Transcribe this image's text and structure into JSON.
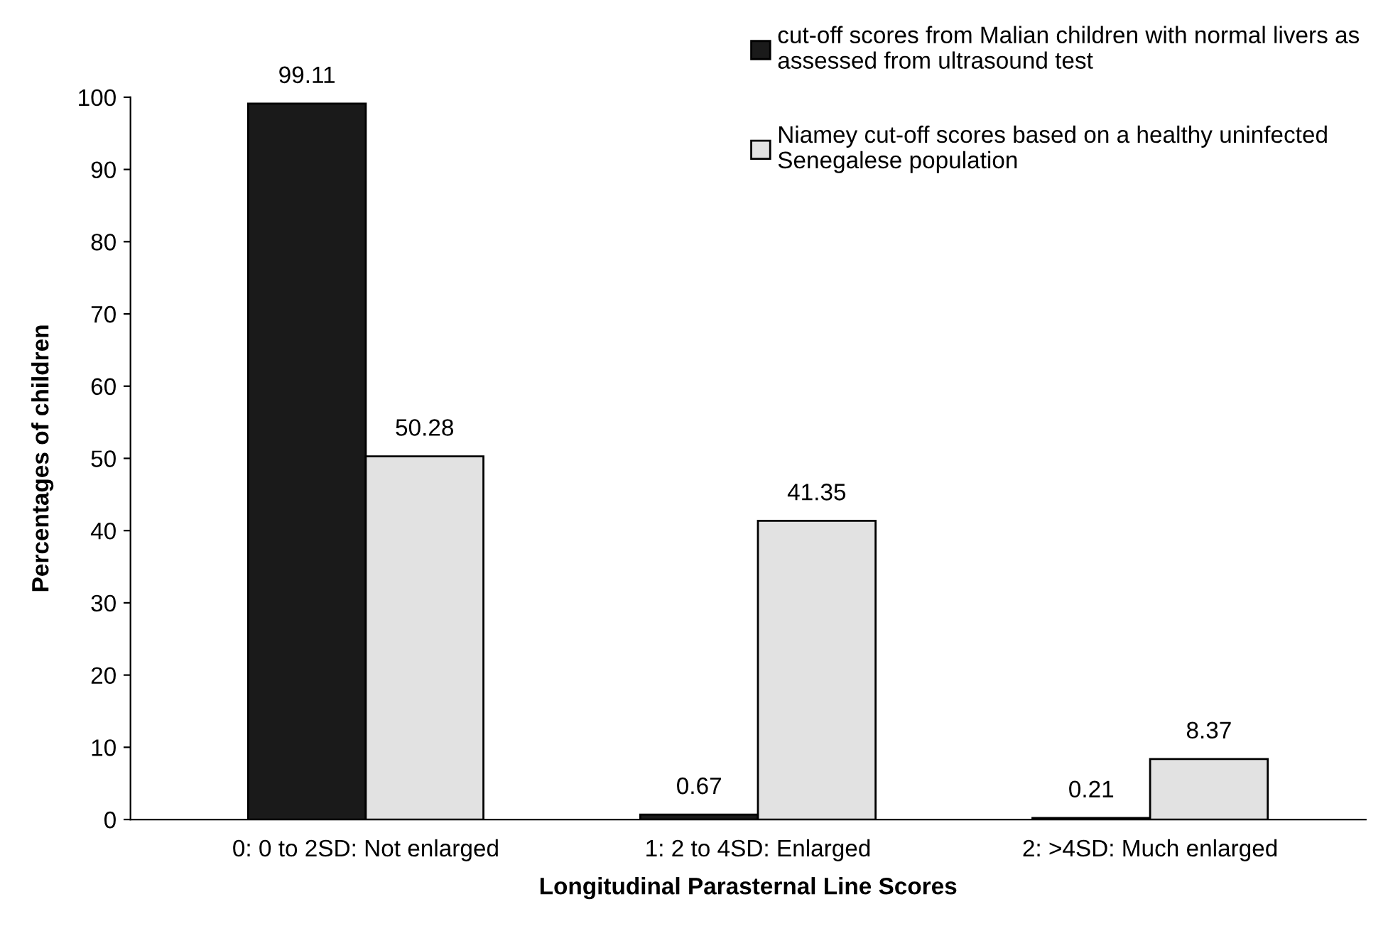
{
  "chart_data": {
    "type": "bar",
    "xlabel": "Longitudinal Parasternal Line Scores",
    "ylabel": "Percentages of children",
    "categories": [
      "0: 0 to 2SD: Not enlarged",
      "1: 2 to 4SD: Enlarged",
      "2: >4SD: Much enlarged"
    ],
    "series": [
      {
        "name": "cut-off scores from Malian children with normal livers as\nassessed from ultrasound test",
        "color": "#1a1a1a",
        "values": [
          99.11,
          0.67,
          0.21
        ]
      },
      {
        "name": "Niamey cut-off scores based on a healthy uninfected\nSenegalese population",
        "color": "#e2e2e2",
        "values": [
          50.28,
          41.35,
          8.37
        ]
      }
    ],
    "ylim": [
      0,
      100
    ],
    "yticks": [
      0,
      10,
      20,
      30,
      40,
      50,
      60,
      70,
      80,
      90,
      100
    ],
    "data_labels": true,
    "grid": false,
    "legend": "top right"
  }
}
